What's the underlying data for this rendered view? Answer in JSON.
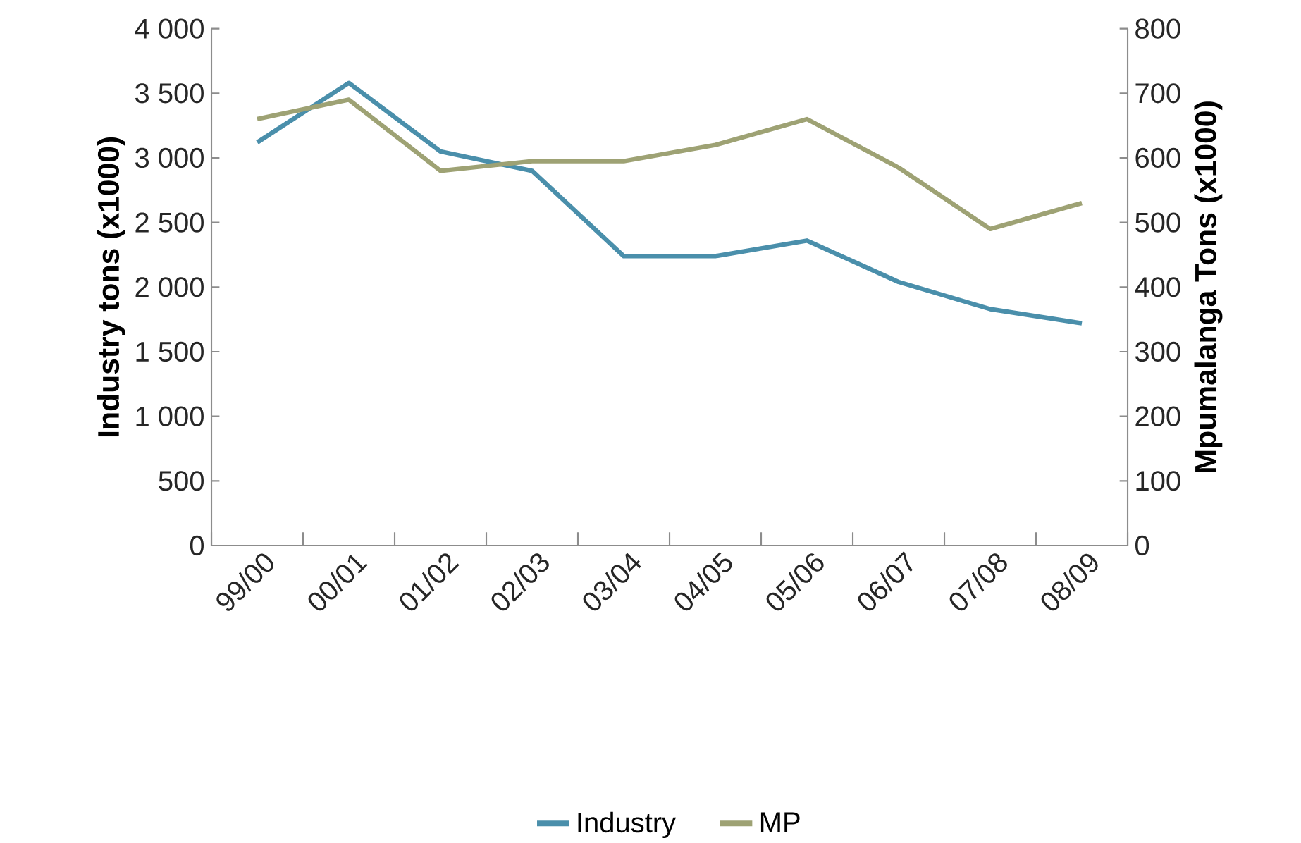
{
  "chart_data": {
    "type": "line",
    "xlabel": null,
    "ylabel": "Industry tons (x1000)",
    "y2label": "Mpumalanga Tons (x1000)",
    "categories": [
      "99/00",
      "00/01",
      "01/02",
      "02/03",
      "03/04",
      "04/05",
      "05/06",
      "06/07",
      "07/08",
      "08/09"
    ],
    "series": [
      {
        "name": "Industry",
        "color": "#4a8fab",
        "values": [
          3120,
          3580,
          3050,
          2900,
          2240,
          2240,
          2360,
          2040,
          1830,
          1720
        ]
      },
      {
        "name": "MP",
        "color": "#9ea274",
        "axis": "y2",
        "values": [
          660,
          690,
          580,
          595,
          595,
          620,
          660,
          585,
          490,
          530
        ]
      }
    ],
    "ylim": [
      0,
      4000
    ],
    "yticks": [
      0,
      500,
      {
        "value": 1000,
        "label": "1 000"
      },
      {
        "value": 1500,
        "label": "1 500"
      },
      {
        "value": 2000,
        "label": "2 000"
      },
      {
        "value": 2500,
        "label": "2 500"
      },
      {
        "value": 3000,
        "label": "3 000"
      },
      {
        "value": 3500,
        "label": "3 500"
      },
      {
        "value": 4000,
        "label": "4 000"
      }
    ],
    "y2lim": [
      0,
      800
    ],
    "y2ticks": [
      0,
      100,
      200,
      300,
      400,
      500,
      600,
      700,
      800
    ],
    "grid": false,
    "legend": "bottom",
    "marker": "none",
    "line_style": "solid"
  }
}
